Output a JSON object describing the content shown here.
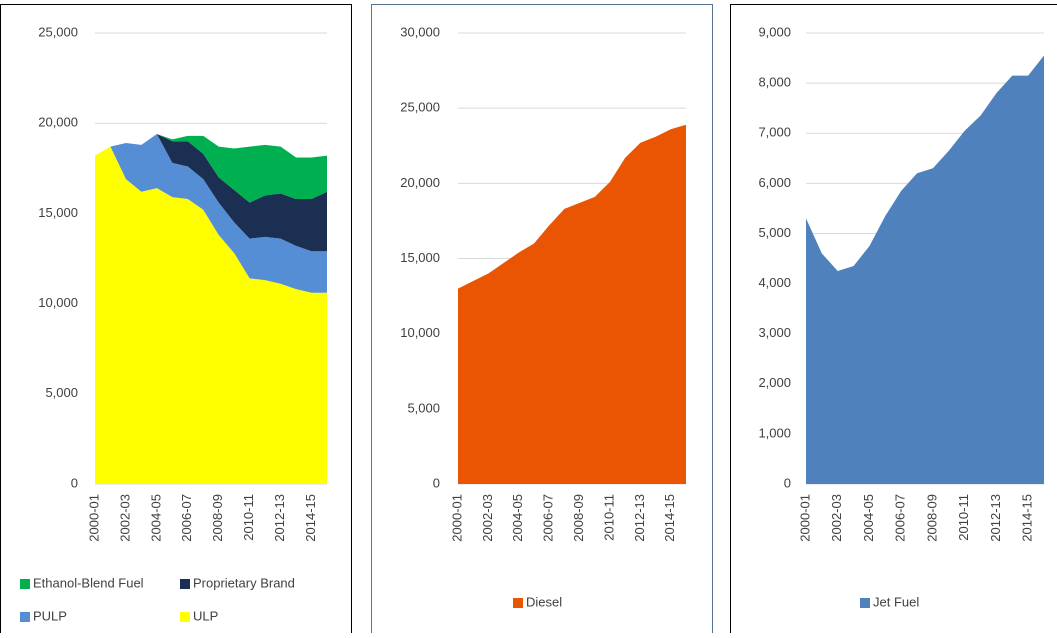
{
  "chart_data": [
    {
      "type": "area",
      "stacked": true,
      "categories": [
        "2000-01",
        null,
        "2002-03",
        null,
        "2004-05",
        null,
        "2006-07",
        null,
        "2008-09",
        null,
        "2010-11",
        null,
        "2012-13",
        null,
        "2014-15",
        null
      ],
      "series": [
        {
          "name": "Ethanol-Blend Fuel",
          "color": "#00b050",
          "values": [
            0,
            0,
            0,
            0,
            0,
            100,
            300,
            1000,
            1700,
            2300,
            3100,
            2800,
            2600,
            2300,
            2300,
            2000
          ]
        },
        {
          "name": "Proprietary Brand",
          "color": "#1b2f52",
          "values": [
            0,
            0,
            0,
            0,
            0,
            1200,
            1400,
            1400,
            1400,
            1800,
            2000,
            2300,
            2500,
            2600,
            2900,
            3300
          ]
        },
        {
          "name": "PULP",
          "color": "#558ed5",
          "values": [
            0,
            0,
            2000,
            2600,
            3000,
            1900,
            1800,
            1700,
            1800,
            1700,
            2200,
            2400,
            2500,
            2400,
            2300,
            2300
          ]
        },
        {
          "name": "ULP",
          "color": "#ffff00",
          "values": [
            18200,
            18700,
            16900,
            16200,
            16400,
            15900,
            15800,
            15200,
            13800,
            12800,
            11400,
            11300,
            11100,
            10800,
            10600,
            10600
          ]
        }
      ],
      "ylim": [
        0,
        25000
      ],
      "yticks": [
        0,
        {
          "value": 5000,
          "label": "5,000"
        },
        {
          "value": 10000,
          "label": "10,000"
        },
        {
          "value": 15000,
          "label": "15,000"
        },
        {
          "value": 20000,
          "label": "20,000"
        },
        {
          "value": 25000,
          "label": "25,000"
        }
      ],
      "grid": true
    },
    {
      "type": "area",
      "stacked": false,
      "categories": [
        "2000-01",
        null,
        "2002-03",
        null,
        "2004-05",
        null,
        "2006-07",
        null,
        "2008-09",
        null,
        "2010-11",
        null,
        "2012-13",
        null,
        "2014-15",
        null
      ],
      "series": [
        {
          "name": "Diesel",
          "color": "#ea5504",
          "values": [
            13000,
            13500,
            14000,
            14700,
            15400,
            16000,
            17200,
            18300,
            18700,
            19100,
            20100,
            21700,
            22700,
            23100,
            23600,
            23900
          ]
        }
      ],
      "ylim": [
        0,
        30000
      ],
      "yticks": [
        0,
        {
          "value": 5000,
          "label": "5,000"
        },
        {
          "value": 10000,
          "label": "10,000"
        },
        {
          "value": 15000,
          "label": "15,000"
        },
        {
          "value": 20000,
          "label": "20,000"
        },
        {
          "value": 25000,
          "label": "25,000"
        },
        {
          "value": 30000,
          "label": "30,000"
        }
      ],
      "grid": true
    },
    {
      "type": "area",
      "stacked": false,
      "categories": [
        "2000-01",
        null,
        "2002-03",
        null,
        "2004-05",
        null,
        "2006-07",
        null,
        "2008-09",
        null,
        "2010-11",
        null,
        "2012-13",
        null,
        "2014-15",
        null
      ],
      "series": [
        {
          "name": "Jet Fuel",
          "color": "#4f81bd",
          "values": [
            5300,
            4600,
            4250,
            4350,
            4750,
            5350,
            5850,
            6200,
            6300,
            6650,
            7050,
            7350,
            7800,
            8150,
            8150,
            8550
          ]
        }
      ],
      "ylim": [
        0,
        9000
      ],
      "yticks": [
        0,
        {
          "value": 1000,
          "label": "1,000"
        },
        {
          "value": 2000,
          "label": "2,000"
        },
        {
          "value": 3000,
          "label": "3,000"
        },
        {
          "value": 4000,
          "label": "4,000"
        },
        {
          "value": 5000,
          "label": "5,000"
        },
        {
          "value": 6000,
          "label": "6,000"
        },
        {
          "value": 7000,
          "label": "7,000"
        },
        {
          "value": 8000,
          "label": "8,000"
        },
        {
          "value": 9000,
          "label": "9,000"
        }
      ],
      "grid": true
    }
  ]
}
